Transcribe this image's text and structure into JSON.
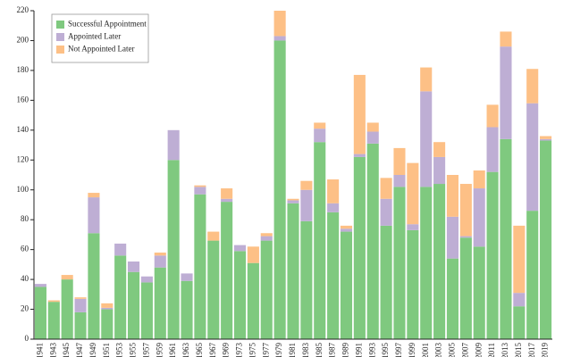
{
  "chart_data": {
    "type": "stacked_bar",
    "categories": [
      "1941",
      "1943",
      "1945",
      "1947",
      "1949",
      "1951",
      "1953",
      "1955",
      "1957",
      "1959",
      "1961",
      "1963",
      "1965",
      "1967",
      "1969",
      "1973",
      "1975",
      "1977",
      "1979",
      "1981",
      "1983",
      "1985",
      "1987",
      "1989",
      "1991",
      "1993",
      "1995",
      "1997",
      "1999",
      "2001",
      "2003",
      "2005",
      "2007",
      "2009",
      "2011",
      "2013",
      "2015",
      "2017",
      "2019"
    ],
    "series": [
      {
        "name": "Successful Appointment",
        "color": "#7fc97f",
        "values": [
          35,
          25,
          40,
          18,
          71,
          20,
          56,
          45,
          38,
          48,
          120,
          39,
          97,
          66,
          92,
          59,
          51,
          66,
          200,
          91,
          79,
          132,
          85,
          72,
          122,
          131,
          76,
          102,
          73,
          102,
          104,
          54,
          68,
          62,
          112,
          134,
          22,
          86,
          133
        ]
      },
      {
        "name": "Appointed Later",
        "color": "#beaed4",
        "values": [
          2,
          0,
          0,
          9,
          24,
          1,
          8,
          7,
          4,
          8,
          20,
          5,
          5,
          0,
          2,
          4,
          0,
          3,
          3,
          2,
          21,
          9,
          6,
          2,
          2,
          8,
          18,
          8,
          4,
          64,
          18,
          28,
          1,
          39,
          30,
          62,
          9,
          72,
          1
        ]
      },
      {
        "name": "Not Appointed Later",
        "color": "#fdc086",
        "values": [
          0,
          1,
          3,
          1,
          3,
          3,
          0,
          0,
          0,
          2,
          0,
          0,
          1,
          6,
          7,
          0,
          11,
          2,
          17,
          1,
          6,
          4,
          16,
          2,
          53,
          6,
          14,
          18,
          41,
          16,
          10,
          28,
          35,
          12,
          15,
          10,
          45,
          23,
          2
        ]
      }
    ],
    "ylim": [
      0,
      220
    ],
    "yticks": [
      0,
      20,
      40,
      60,
      80,
      100,
      120,
      140,
      160,
      180,
      200,
      220
    ],
    "legend": "upper left"
  }
}
